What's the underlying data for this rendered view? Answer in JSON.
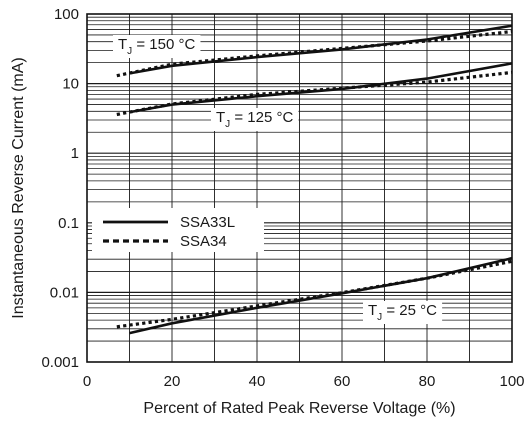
{
  "chart_data": {
    "type": "line",
    "xlabel": "Percent of Rated Peak Reverse Voltage (%)",
    "ylabel": "Instantaneous Reverse Current (mA)",
    "xlim": [
      0,
      100
    ],
    "ylim": [
      0.001,
      100
    ],
    "yscale": "log",
    "grid": true,
    "x_ticks": [
      0,
      20,
      40,
      60,
      80,
      100
    ],
    "y_ticks": [
      0.001,
      0.01,
      0.1,
      1,
      10,
      100
    ],
    "x_tick_labels": [
      "0",
      "20",
      "40",
      "60",
      "80",
      "100"
    ],
    "y_tick_labels": [
      "0.001",
      "0.01",
      "0.1",
      "1",
      "10",
      "100"
    ],
    "legend": {
      "placement": "middle-left",
      "entries": [
        {
          "label": "SSA33L",
          "style": "solid"
        },
        {
          "label": "SSA34",
          "style": "dotted"
        }
      ]
    },
    "annotations": [
      {
        "main": "T",
        "sub": "J",
        "rest": " = 150 °C"
      },
      {
        "main": "T",
        "sub": "J",
        "rest": " = 125 °C"
      },
      {
        "main": "T",
        "sub": "J",
        "rest": " = 25 °C"
      }
    ],
    "series": [
      {
        "name": "SSA33L",
        "condition": "TJ = 150 °C",
        "style": "solid",
        "x": [
          10,
          20,
          40,
          60,
          80,
          100
        ],
        "y": [
          14,
          18,
          24,
          31,
          43,
          68
        ]
      },
      {
        "name": "SSA34",
        "condition": "TJ = 150 °C",
        "style": "dotted",
        "x": [
          7,
          20,
          40,
          60,
          80,
          100
        ],
        "y": [
          13,
          19,
          25,
          32,
          41,
          56
        ]
      },
      {
        "name": "SSA33L",
        "condition": "TJ = 125 °C",
        "style": "solid",
        "x": [
          10,
          20,
          40,
          60,
          80,
          100
        ],
        "y": [
          3.9,
          5.0,
          6.6,
          8.4,
          11.8,
          19.5
        ]
      },
      {
        "name": "SSA34",
        "condition": "TJ = 125 °C",
        "style": "dotted",
        "x": [
          7,
          20,
          40,
          60,
          80,
          100
        ],
        "y": [
          3.6,
          5.1,
          7.0,
          8.6,
          10.5,
          14.5
        ]
      },
      {
        "name": "SSA33L",
        "condition": "TJ = 25 °C",
        "style": "solid",
        "x": [
          10,
          20,
          40,
          60,
          80,
          100
        ],
        "y": [
          0.0026,
          0.0036,
          0.006,
          0.0097,
          0.016,
          0.031
        ]
      },
      {
        "name": "SSA34",
        "condition": "TJ = 25 °C",
        "style": "dotted",
        "x": [
          7,
          20,
          40,
          60,
          80,
          100
        ],
        "y": [
          0.0032,
          0.0041,
          0.0064,
          0.0099,
          0.016,
          0.028
        ]
      }
    ],
    "colors": {
      "line": "#111111",
      "grid": "#1a1a1a",
      "background": "#ffffff"
    }
  }
}
